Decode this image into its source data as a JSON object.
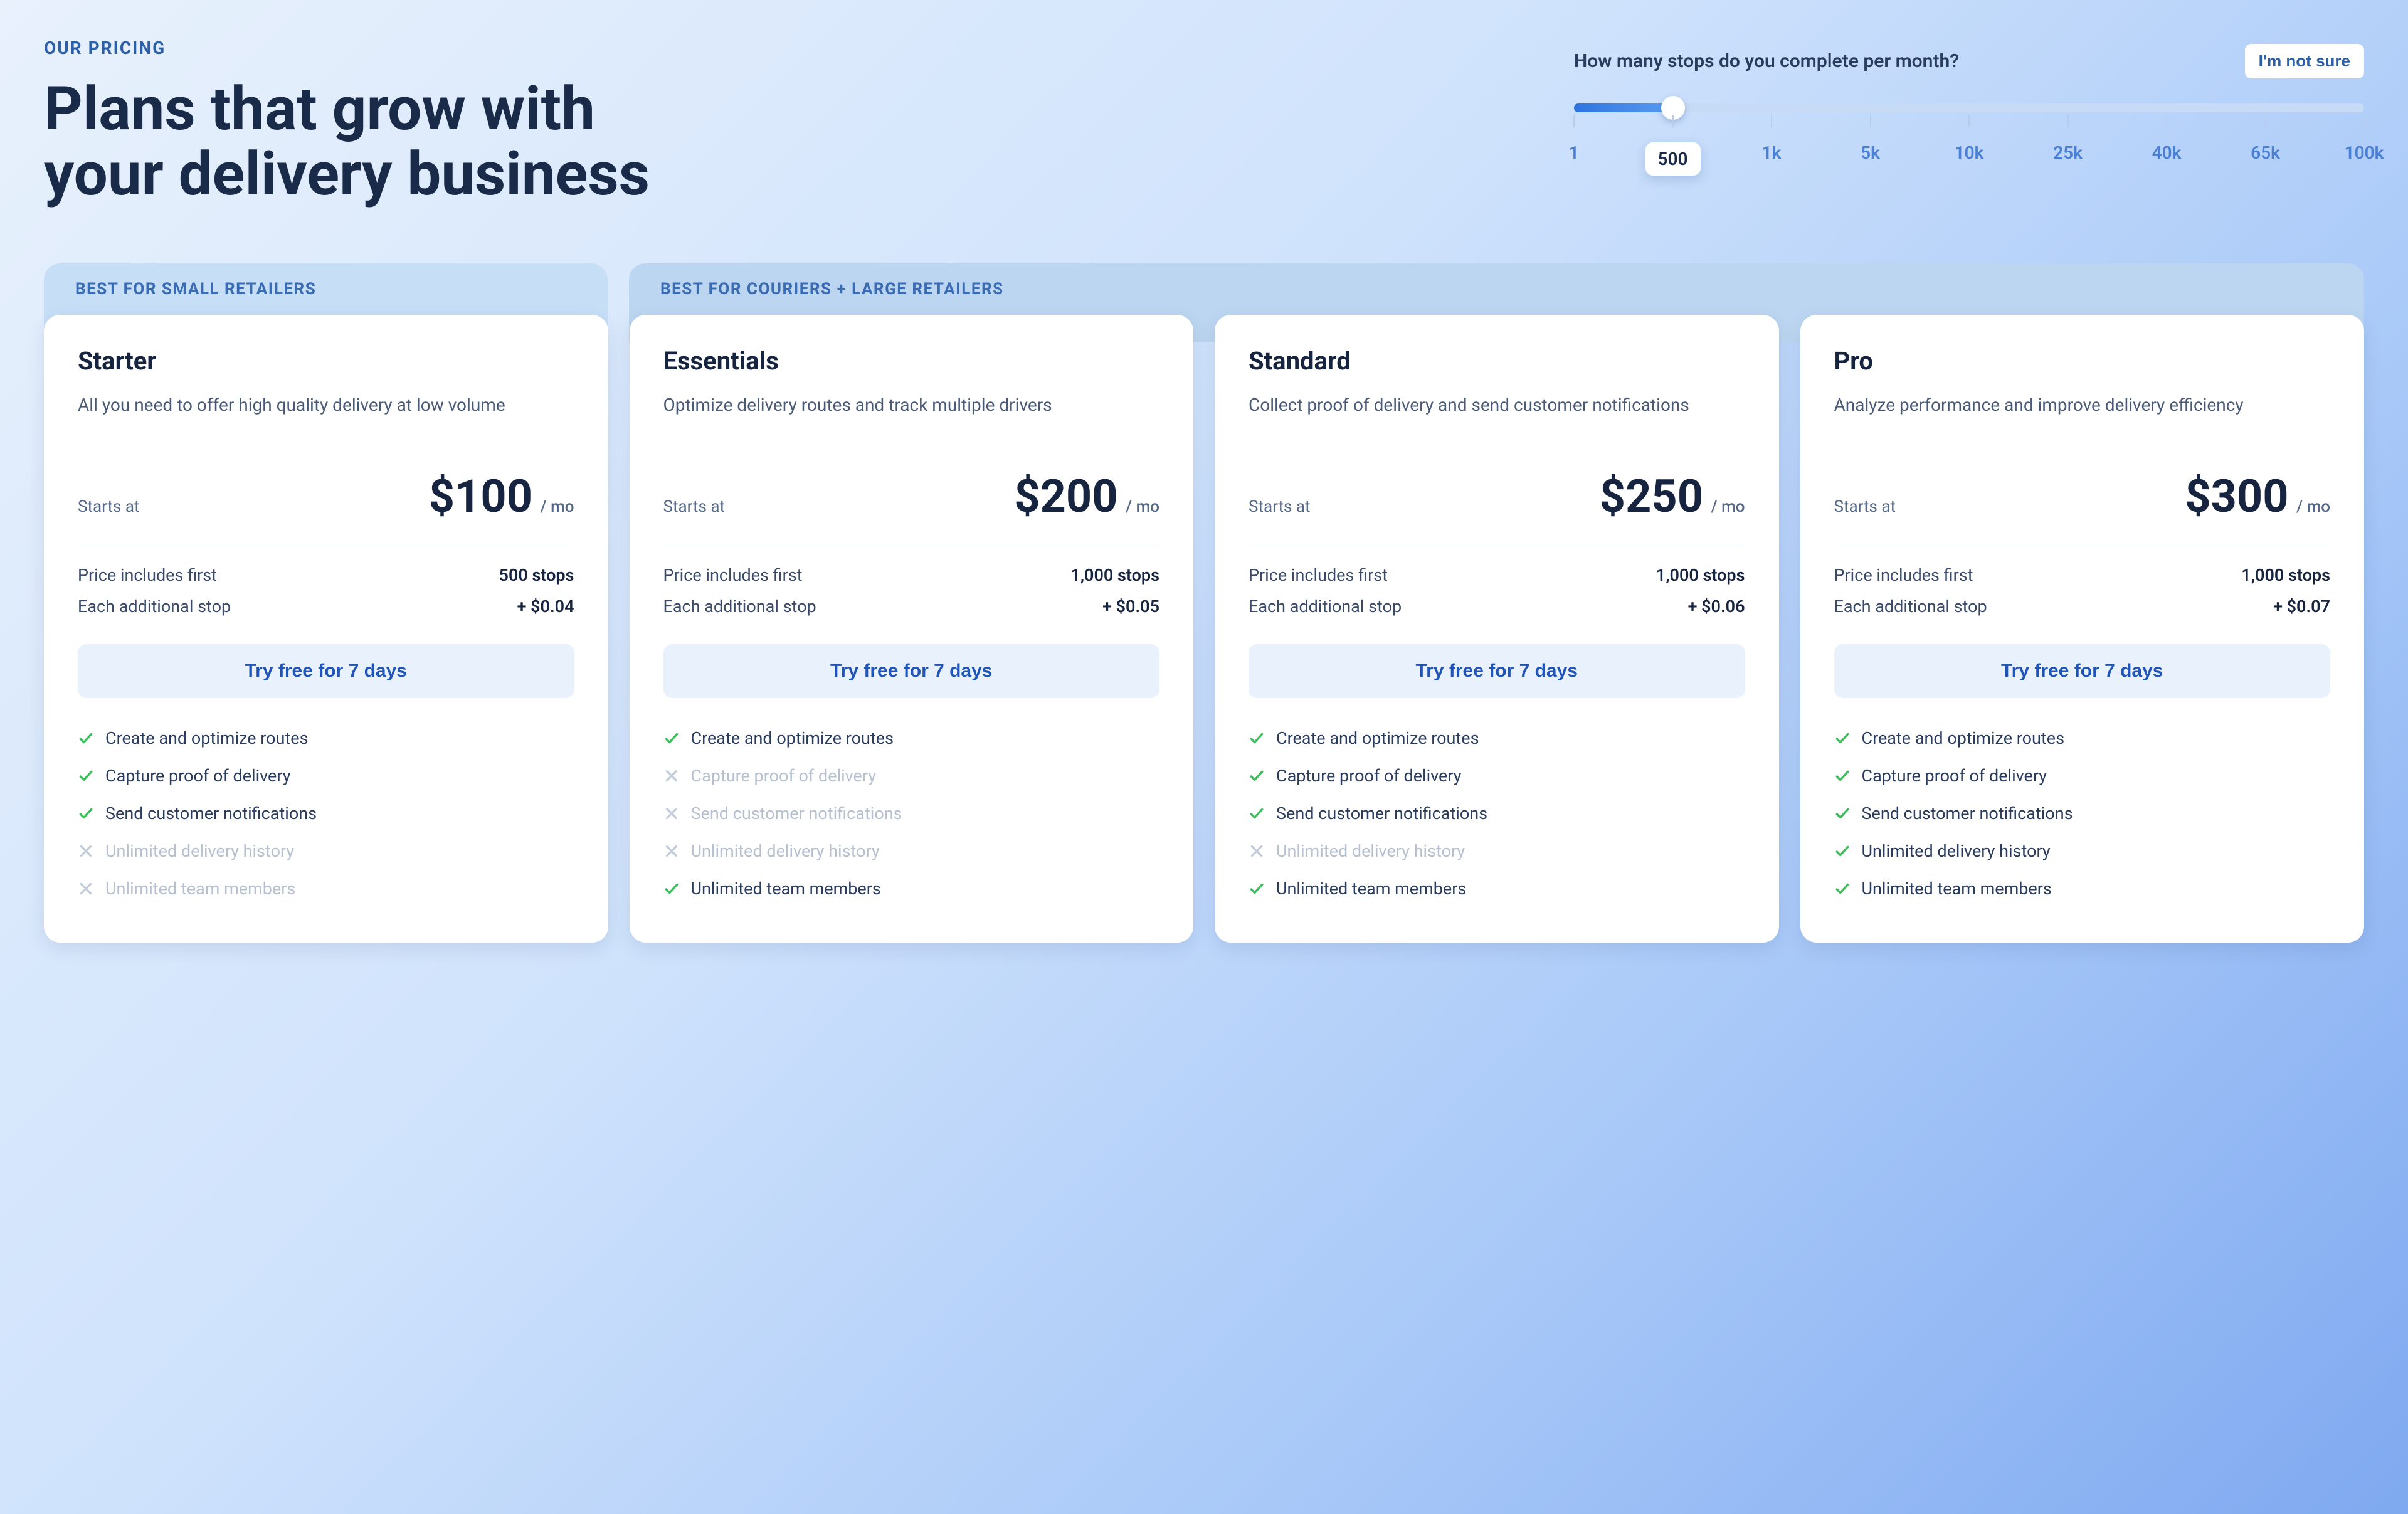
{
  "colors": {
    "bg_grad_from": "#e8f1fc",
    "bg_grad_to": "#7fa9f0",
    "accent": "#2b5fa8",
    "headline": "#1a2b4a",
    "check": "#3bbf5a",
    "cross": "#c3ccda",
    "card_bg": "#ffffff",
    "cta_bg": "#e9f1fd",
    "cta_text": "#1f55b8",
    "slider_fill_from": "#2d74e0",
    "slider_fill_to": "#5a9cf2",
    "slider_track": "#c7dbf6",
    "group_tab_small": "#c6def6",
    "group_tab_large": "#bcd6f1"
  },
  "header": {
    "eyebrow": "OUR PRICING",
    "headline_line1": "Plans that grow with",
    "headline_line2": "your delivery business"
  },
  "slider": {
    "question": "How many stops do you complete per month?",
    "not_sure": "I'm not sure",
    "stops": [
      "1",
      "500",
      "1k",
      "5k",
      "10k",
      "25k",
      "40k",
      "65k",
      "100k"
    ],
    "active_index": 1,
    "fill_percent": 12.5
  },
  "groups": {
    "small": "BEST FOR SMALL RETAILERS",
    "large": "BEST FOR COURIERS + LARGE RETAILERS"
  },
  "shared": {
    "starts_at": "Starts at",
    "per_mo": "/ mo",
    "includes_label": "Price includes first",
    "each_additional_label": "Each additional stop",
    "cta": "Try free for 7 days",
    "feature_names": [
      "Create and optimize routes",
      "Capture proof of delivery",
      "Send customer notifications",
      "Unlimited delivery history",
      "Unlimited team members"
    ]
  },
  "plans": [
    {
      "name": "Starter",
      "desc": "All you need to offer high quality delivery at low volume",
      "price": "$100",
      "included_stops": "500 stops",
      "each_additional": "+ $0.04",
      "features": [
        true,
        true,
        true,
        false,
        false
      ]
    },
    {
      "name": "Essentials",
      "desc": "Optimize delivery routes and track multiple drivers",
      "price": "$200",
      "included_stops": "1,000 stops",
      "each_additional": "+ $0.05",
      "features": [
        true,
        false,
        false,
        false,
        true
      ]
    },
    {
      "name": "Standard",
      "desc": "Collect proof of delivery and send customer notifications",
      "price": "$250",
      "included_stops": "1,000 stops",
      "each_additional": "+ $0.06",
      "features": [
        true,
        true,
        true,
        false,
        true
      ]
    },
    {
      "name": "Pro",
      "desc": "Analyze performance and improve delivery efficiency",
      "price": "$300",
      "included_stops": "1,000 stops",
      "each_additional": "+ $0.07",
      "features": [
        true,
        true,
        true,
        true,
        true
      ]
    }
  ]
}
